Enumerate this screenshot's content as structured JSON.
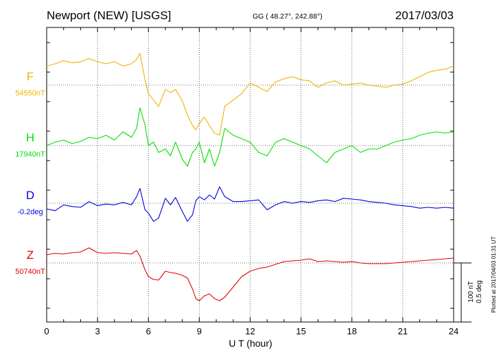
{
  "chart_data": {
    "type": "line",
    "title": "Newport (NEW)  [USGS]",
    "coords": "GG ( 48.27°, 242.88°)",
    "date": "2017/03/03",
    "xlabel": "U T (hour)",
    "xlim": [
      0,
      24
    ],
    "xticks": [
      "0",
      "3",
      "6",
      "9",
      "12",
      "15",
      "18",
      "21",
      "24"
    ],
    "scale_labels": [
      "100 nT",
      "0.5 deg"
    ],
    "footer": "Plotted at 2017/04/03 01:31 UT",
    "grid": true,
    "series": [
      {
        "name": "F",
        "baseline": "54550nT",
        "color": "#f0b400",
        "x": [
          0,
          0.5,
          1,
          1.5,
          2,
          2.5,
          3,
          3.5,
          4,
          4.5,
          5,
          5.3,
          5.5,
          5.8,
          6,
          6.3,
          6.6,
          7,
          7.3,
          7.6,
          8,
          8.3,
          8.6,
          8.8,
          9,
          9.3,
          9.6,
          9.9,
          10.2,
          10.5,
          11,
          11.5,
          12,
          12.5,
          13,
          13.5,
          14,
          14.5,
          15,
          15.5,
          16,
          16.5,
          17,
          17.5,
          18,
          18.5,
          19,
          19.5,
          20,
          20.5,
          21,
          21.5,
          22,
          22.5,
          23,
          23.5,
          24
        ],
        "y": [
          18,
          20,
          23,
          21,
          22,
          25,
          22,
          20,
          22,
          18,
          20,
          24,
          30,
          5,
          -8,
          -14,
          -20,
          -4,
          -7,
          -4,
          -15,
          -28,
          -38,
          -42,
          -36,
          -30,
          -38,
          -45,
          -47,
          -20,
          -14,
          -8,
          2,
          -2,
          -6,
          3,
          6,
          8,
          5,
          4,
          -2,
          2,
          4,
          0,
          1,
          2,
          0,
          -1,
          -2,
          0,
          1,
          4,
          8,
          12,
          14,
          15,
          18
        ]
      },
      {
        "name": "H",
        "baseline": "17940nT",
        "color": "#00e000",
        "x": [
          0,
          0.5,
          1,
          1.5,
          2,
          2.5,
          3,
          3.5,
          4,
          4.5,
          5,
          5.3,
          5.5,
          5.8,
          6,
          6.3,
          6.6,
          7,
          7.3,
          7.6,
          8,
          8.3,
          8.6,
          8.8,
          9,
          9.3,
          9.6,
          9.9,
          10.2,
          10.5,
          11,
          11.5,
          12,
          12.5,
          13,
          13.5,
          14,
          14.5,
          15,
          15.5,
          16,
          16.5,
          17,
          17.5,
          18,
          18.5,
          19,
          19.5,
          20,
          20.5,
          21,
          21.5,
          22,
          22.5,
          23,
          23.5,
          24
        ],
        "y": [
          0,
          5,
          8,
          3,
          6,
          12,
          10,
          15,
          8,
          20,
          12,
          25,
          55,
          30,
          0,
          5,
          -10,
          -5,
          -15,
          5,
          -20,
          -30,
          -10,
          -5,
          5,
          -25,
          -5,
          -30,
          -10,
          25,
          15,
          10,
          5,
          -10,
          -15,
          5,
          10,
          5,
          0,
          -5,
          -15,
          -25,
          -10,
          -5,
          0,
          -10,
          -5,
          -5,
          0,
          5,
          8,
          10,
          15,
          18,
          20,
          18,
          20
        ]
      },
      {
        "name": "D",
        "baseline": "-0.2deg",
        "color": "#0000e0",
        "x": [
          0,
          0.5,
          1,
          1.5,
          2,
          2.5,
          3,
          3.5,
          4,
          4.5,
          5,
          5.3,
          5.5,
          5.8,
          6,
          6.3,
          6.6,
          7,
          7.3,
          7.6,
          8,
          8.3,
          8.6,
          8.8,
          9,
          9.3,
          9.6,
          9.9,
          10.2,
          10.5,
          11,
          11.5,
          12,
          12.5,
          13,
          13.5,
          14,
          14.5,
          15,
          15.5,
          16,
          16.5,
          17,
          17.5,
          18,
          18.5,
          19,
          19.5,
          20,
          20.5,
          21,
          21.5,
          22,
          22.5,
          23,
          23.5,
          24
        ],
        "y": [
          -0.07,
          -0.09,
          -0.02,
          -0.04,
          -0.05,
          0.02,
          -0.03,
          -0.01,
          -0.02,
          0.01,
          -0.02,
          0.08,
          0.18,
          -0.08,
          -0.12,
          -0.22,
          -0.18,
          0.06,
          -0.02,
          0.07,
          -0.1,
          -0.22,
          -0.14,
          0.03,
          0.08,
          0.04,
          0.1,
          0.05,
          0.2,
          0.08,
          0.02,
          0.02,
          0.03,
          0.04,
          -0.08,
          -0.02,
          0.02,
          0.0,
          0.02,
          0.01,
          0.03,
          0.04,
          0.02,
          0.06,
          0.05,
          0.04,
          0.02,
          0.01,
          0.0,
          -0.02,
          -0.03,
          -0.04,
          -0.06,
          -0.05,
          -0.06,
          -0.05,
          -0.06
        ]
      },
      {
        "name": "Z",
        "baseline": "50740nT",
        "color": "#e00000",
        "x": [
          0,
          0.5,
          1,
          1.5,
          2,
          2.5,
          3,
          3.5,
          4,
          4.5,
          5,
          5.3,
          5.5,
          5.8,
          6,
          6.3,
          6.6,
          7,
          7.3,
          7.6,
          8,
          8.3,
          8.6,
          8.8,
          9,
          9.3,
          9.6,
          9.9,
          10.2,
          10.5,
          11,
          11.5,
          12,
          12.5,
          13,
          13.5,
          14,
          14.5,
          15,
          15.5,
          16,
          16.5,
          17,
          17.5,
          18,
          18.5,
          19,
          19.5,
          20,
          20.5,
          21,
          21.5,
          22,
          22.5,
          23,
          23.5,
          24
        ],
        "y": [
          12,
          14,
          13,
          15,
          16,
          22,
          15,
          14,
          15,
          14,
          13,
          18,
          10,
          -10,
          -20,
          -24,
          -25,
          -12,
          -14,
          -15,
          -18,
          -22,
          -38,
          -52,
          -55,
          -48,
          -45,
          -52,
          -55,
          -50,
          -35,
          -20,
          -12,
          -8,
          -6,
          -2,
          2,
          3,
          4,
          6,
          2,
          3,
          2,
          1,
          2,
          0,
          -1,
          -1,
          -1,
          0,
          1,
          2,
          3,
          4,
          5,
          6,
          7
        ]
      }
    ]
  }
}
